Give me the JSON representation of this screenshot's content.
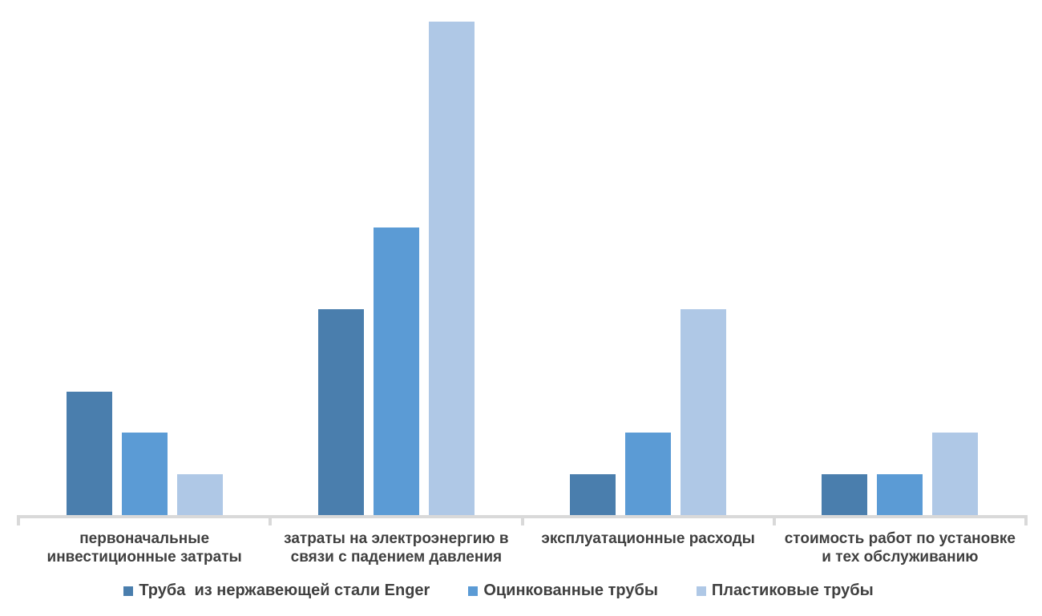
{
  "colors": {
    "background": "#FFFFFF",
    "text": "#404040",
    "axis": "#D9D9D9",
    "series": [
      "#4A7EAD",
      "#5B9BD5",
      "#AFC8E6"
    ]
  },
  "chart_data": {
    "type": "bar",
    "title": "",
    "xlabel": "",
    "ylabel": "",
    "categories": [
      "первоначальные\nинвестиционные затраты",
      "затраты на электроэнергию в\nсвязи с падением давления",
      "эксплуатационные расходы",
      "стоимость работ по установке\nи тех обслуживанию"
    ],
    "series": [
      {
        "name": "Труба  из нержавеющей стали Enger",
        "values": [
          3,
          5,
          1,
          1
        ]
      },
      {
        "name": "Оцинкованные трубы",
        "values": [
          2,
          7,
          2,
          1
        ]
      },
      {
        "name": "Пластиковые трубы",
        "values": [
          1,
          12,
          5,
          2
        ]
      }
    ],
    "ylim": [
      0,
      12.5
    ],
    "grid": false,
    "y_axis_visible": false,
    "data_labels": false,
    "legend_position": "bottom"
  }
}
